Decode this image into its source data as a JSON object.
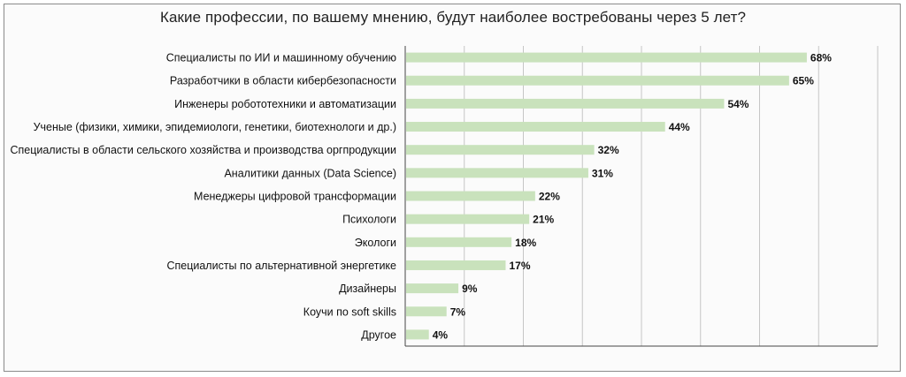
{
  "chart_data": {
    "type": "bar",
    "orientation": "horizontal",
    "title": "Какие профессии, по вашему мнению, будут наиболее востребованы через 5 лет?",
    "categories": [
      "Специалисты по ИИ и машинному обучению",
      "Разработчики в области кибербезопасности",
      "Инженеры робототехники и автоматизации",
      "Ученые (физики, химики, эпидемиологи, генетики, биотехнологи и др.)",
      "Специалисты в области сельского хозяйства и производства оргпродукции",
      "Аналитики данных (Data Science)",
      "Менеджеры цифровой трансформации",
      "Психологи",
      "Экологи",
      "Специалисты по альтернативной энергетике",
      "Дизайнеры",
      "Коучи по soft skills",
      "Другое"
    ],
    "values": [
      68,
      65,
      54,
      44,
      32,
      31,
      22,
      21,
      18,
      17,
      9,
      7,
      4
    ],
    "value_labels": [
      "68%",
      "65%",
      "54%",
      "44%",
      "32%",
      "31%",
      "22%",
      "21%",
      "18%",
      "17%",
      "9%",
      "7%",
      "4%"
    ],
    "xlim": [
      0,
      80
    ],
    "grid": true,
    "bar_color": "#c9e2bc",
    "gridline_color": "#c6c6c6"
  }
}
